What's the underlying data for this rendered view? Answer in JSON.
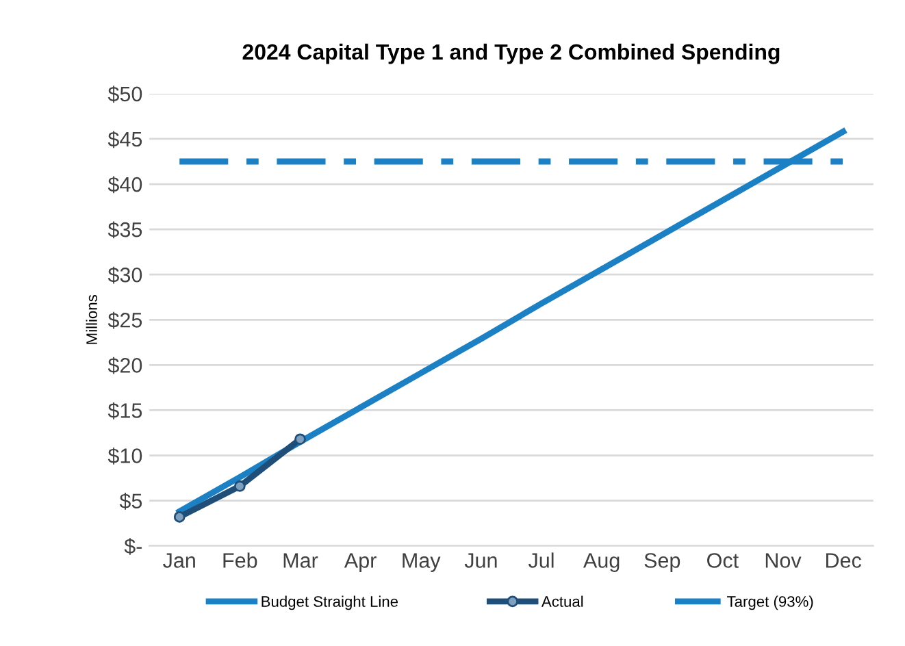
{
  "chart_data": {
    "type": "line",
    "title": "2024 Capital Type 1 and Type 2 Combined Spending",
    "ylabel": "Millions",
    "categories": [
      "Jan",
      "Feb",
      "Mar",
      "Apr",
      "May",
      "Jun",
      "Jul",
      "Aug",
      "Sep",
      "Oct",
      "Nov",
      "Dec"
    ],
    "series": [
      {
        "name": "Budget Straight Line",
        "color": "#1b80c4",
        "marker": "none",
        "line_style": "solid",
        "values": [
          3.8,
          7.6,
          11.5,
          15.3,
          19.1,
          22.9,
          26.8,
          30.6,
          34.4,
          38.2,
          42.0,
          45.8
        ]
      },
      {
        "name": "Actual",
        "color": "#1f4e79",
        "marker": "circle",
        "line_style": "solid",
        "values": [
          3.2,
          6.6,
          11.8,
          null,
          null,
          null,
          null,
          null,
          null,
          null,
          null,
          null
        ]
      },
      {
        "name": "Target (93%)",
        "color": "#1b80c4",
        "marker": "none",
        "line_style": "dashdot",
        "values": [
          42.5,
          42.5,
          42.5,
          42.5,
          42.5,
          42.5,
          42.5,
          42.5,
          42.5,
          42.5,
          42.5,
          42.5
        ]
      }
    ],
    "ylim": [
      0,
      50
    ],
    "yticks": [
      {
        "value": 0,
        "label": "$-"
      },
      {
        "value": 5,
        "label": "$5"
      },
      {
        "value": 10,
        "label": "$10"
      },
      {
        "value": 15,
        "label": "$15"
      },
      {
        "value": 20,
        "label": "$20"
      },
      {
        "value": 25,
        "label": "$25"
      },
      {
        "value": 30,
        "label": "$30"
      },
      {
        "value": 35,
        "label": "$35"
      },
      {
        "value": 40,
        "label": "$40"
      },
      {
        "value": 45,
        "label": "$45"
      },
      {
        "value": 50,
        "label": "$50"
      }
    ],
    "grid": "y",
    "legend": "bottom"
  }
}
